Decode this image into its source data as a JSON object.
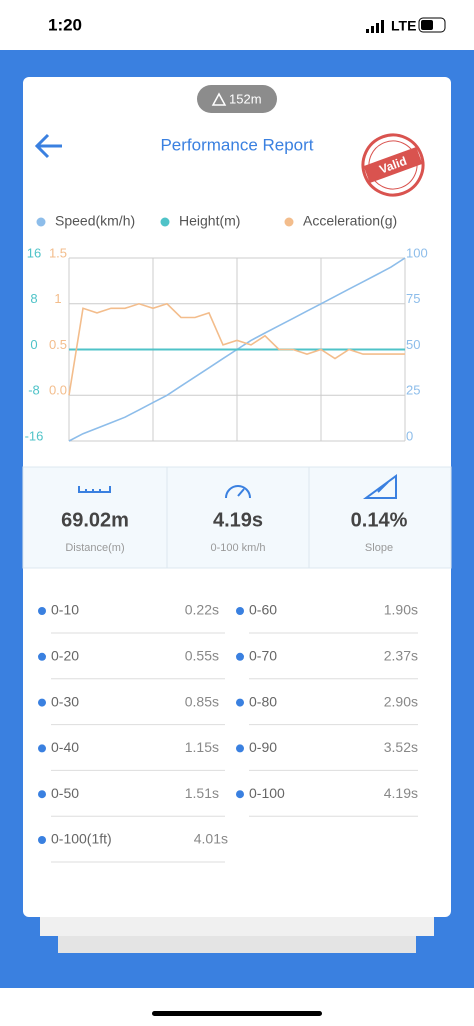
{
  "status_bar": {
    "time": "1:20",
    "network": "LTE"
  },
  "badge": "152m",
  "header": {
    "title": "Performance Report",
    "stamp": "Valid"
  },
  "chart_data": {
    "type": "line",
    "series": [
      {
        "name": "Speed(km/h)",
        "color": "#8dbdea",
        "axis": "y2",
        "values": [
          0,
          4,
          7,
          10,
          13,
          17,
          21,
          25,
          30,
          35,
          40,
          45,
          50,
          55,
          59,
          63,
          67,
          71,
          75,
          79,
          83,
          87,
          91,
          95,
          100
        ]
      },
      {
        "name": "Height(m)",
        "color": "#4fc3c8",
        "axis": "y",
        "values": [
          0,
          0,
          0,
          0,
          0,
          0,
          0,
          0,
          0,
          0,
          0,
          0,
          0,
          0,
          0,
          0,
          0,
          0,
          0,
          0,
          0,
          0,
          0,
          0,
          0
        ]
      },
      {
        "name": "Acceleration(g)",
        "color": "#f3bd8c",
        "axis": "y3",
        "values": [
          0,
          0.95,
          0.9,
          0.95,
          0.95,
          1.0,
          0.95,
          1.0,
          0.85,
          0.85,
          0.9,
          0.55,
          0.6,
          0.55,
          0.65,
          0.5,
          0.5,
          0.45,
          0.5,
          0.4,
          0.5,
          0.45,
          0.45,
          0.45,
          0.45
        ]
      }
    ],
    "ylim": [
      -16,
      16
    ],
    "yticks": [
      16,
      8,
      0,
      -8,
      -16
    ],
    "y3lim": [
      -0.5,
      1.5
    ],
    "y3ticks": [
      1.5,
      1,
      0.5,
      {
        "value": 0,
        "label": "0.0"
      }
    ],
    "y2lim": [
      0,
      100
    ],
    "y2ticks": [
      100,
      75,
      50,
      25,
      0
    ],
    "grid": true
  },
  "stats": [
    {
      "value": "69.02m",
      "label": "Distance(m)"
    },
    {
      "value": "4.19s",
      "label": "0-100 km/h"
    },
    {
      "value": "0.14%",
      "label": "Slope"
    }
  ],
  "splits": [
    {
      "label": "0-10",
      "time": "0.22s"
    },
    {
      "label": "0-20",
      "time": "0.55s"
    },
    {
      "label": "0-30",
      "time": "0.85s"
    },
    {
      "label": "0-40",
      "time": "1.15s"
    },
    {
      "label": "0-50",
      "time": "1.51s"
    },
    {
      "label": "0-60",
      "time": "1.90s"
    },
    {
      "label": "0-70",
      "time": "2.37s"
    },
    {
      "label": "0-80",
      "time": "2.90s"
    },
    {
      "label": "0-90",
      "time": "3.52s"
    },
    {
      "label": "0-100",
      "time": "4.19s"
    },
    {
      "label": "0-100(1ft)",
      "time": "4.01s"
    }
  ]
}
